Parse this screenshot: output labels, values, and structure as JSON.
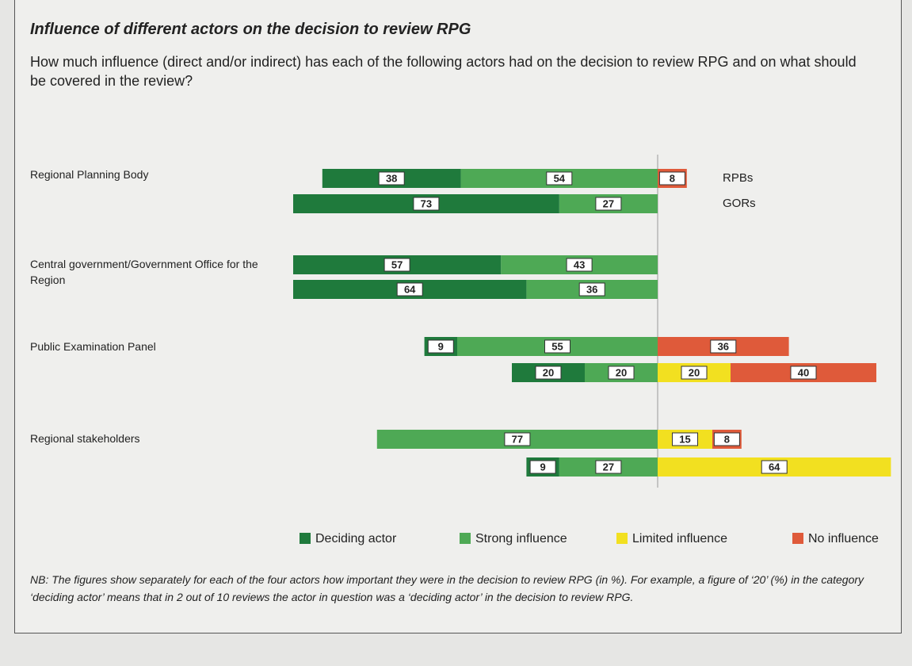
{
  "chart_data": {
    "type": "bar",
    "title": "Influence of different actors on the decision to review RPG",
    "subtitle": "How much influence (direct and/or indirect) has each of the following actors had on the decision to review RPG and on what should be covered in the review?",
    "actors": [
      "Regional Planning Body",
      "Central government/Government Office for the Region",
      "Public Examination Panel",
      "Regional stakeholders"
    ],
    "respondents": [
      "RPBs",
      "GORs"
    ],
    "series": [
      {
        "name": "Deciding actor",
        "color": "#1f7a3c",
        "values": [
          38,
          73,
          57,
          64,
          9,
          20,
          null,
          9
        ]
      },
      {
        "name": "Strong influence",
        "color": "#4ea955",
        "values": [
          54,
          27,
          43,
          36,
          55,
          20,
          77,
          27
        ]
      },
      {
        "name": "Limited influence",
        "color": "#f2e020",
        "values": [
          null,
          null,
          null,
          null,
          null,
          20,
          15,
          64
        ]
      },
      {
        "name": "No influence",
        "color": "#df5a3a",
        "values": [
          8,
          null,
          null,
          null,
          36,
          40,
          8,
          null
        ]
      }
    ],
    "note": "NB: The figures show separately for each of the four actors how important they were in the decision to review RPG (in %). For example, a figure of ‘20’ (%) in the category ‘deciding actor’ means that in 2 out of 10 reviews the actor in question was a ‘deciding actor’ in the decision to review RPG."
  }
}
